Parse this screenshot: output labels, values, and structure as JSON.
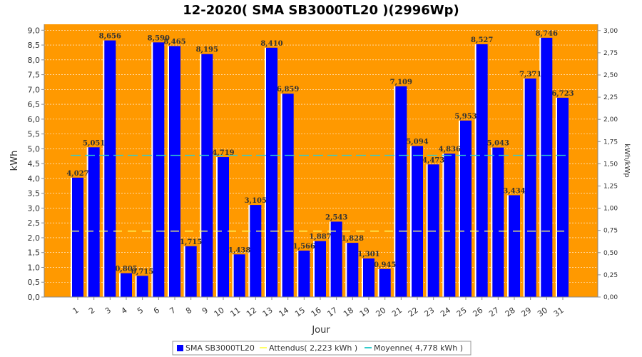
{
  "chart_data": {
    "type": "bar",
    "title": "12-2020( SMA SB3000TL20 )(2996Wp)",
    "xlabel": "Jour",
    "ylabel": "kWh",
    "ylabel_right": "kWh/kWp",
    "ylim": [
      0,
      9.2
    ],
    "ylim_right": [
      0,
      3.0707
    ],
    "yticks": [
      "0,0",
      "0,5",
      "1,0",
      "1,5",
      "2,0",
      "2,5",
      "3,0",
      "3,5",
      "4,0",
      "4,5",
      "5,0",
      "5,5",
      "6,0",
      "6,5",
      "7,0",
      "7,5",
      "8,0",
      "8,5",
      "9,0"
    ],
    "yticks_right": [
      "0,00",
      "0,25",
      "0,50",
      "0,75",
      "1,00",
      "1,25",
      "1,50",
      "1,75",
      "2,00",
      "2,25",
      "2,50",
      "2,75",
      "3,00"
    ],
    "categories": [
      "1",
      "2",
      "3",
      "4",
      "5",
      "6",
      "7",
      "8",
      "9",
      "10",
      "11",
      "12",
      "13",
      "14",
      "15",
      "16",
      "17",
      "18",
      "19",
      "20",
      "21",
      "22",
      "23",
      "24",
      "25",
      "26",
      "27",
      "28",
      "29",
      "30",
      "31"
    ],
    "series": [
      {
        "name": "SMA SB3000TL20",
        "color": "#0000ff",
        "values": [
          4.027,
          5.051,
          8.656,
          0.805,
          0.715,
          8.59,
          8.465,
          1.715,
          8.195,
          4.719,
          1.438,
          3.105,
          8.41,
          6.859,
          1.566,
          1.887,
          2.543,
          1.828,
          1.301,
          0.945,
          7.109,
          5.094,
          4.473,
          4.836,
          5.953,
          8.527,
          5.043,
          3.434,
          7.371,
          8.746,
          6.723
        ],
        "labels": [
          "4,027",
          "5,051",
          "8,656",
          "0,805",
          "0,715",
          "8,590",
          "8,465",
          "1,715",
          "8,195",
          "4,719",
          "1,438",
          "3,105",
          "8,410",
          "6,859",
          "1,566",
          "1,887",
          "2,543",
          "1,828",
          "1,301",
          "0,945",
          "7,109",
          "5,094",
          "4,473",
          "4,836",
          "5,953",
          "8,527",
          "5,043",
          "3,434",
          "7,371",
          "8,746",
          "6,723"
        ]
      }
    ],
    "lines": [
      {
        "name": "Attendus( 2,223 kWh )",
        "value": 2.223,
        "color": "#ffff66"
      },
      {
        "name": "Moyenne( 4,778 kWh )",
        "value": 4.778,
        "color": "#33cccc"
      }
    ],
    "grid": true,
    "legend_position": "bottom",
    "plot_background": "#ff9900"
  }
}
